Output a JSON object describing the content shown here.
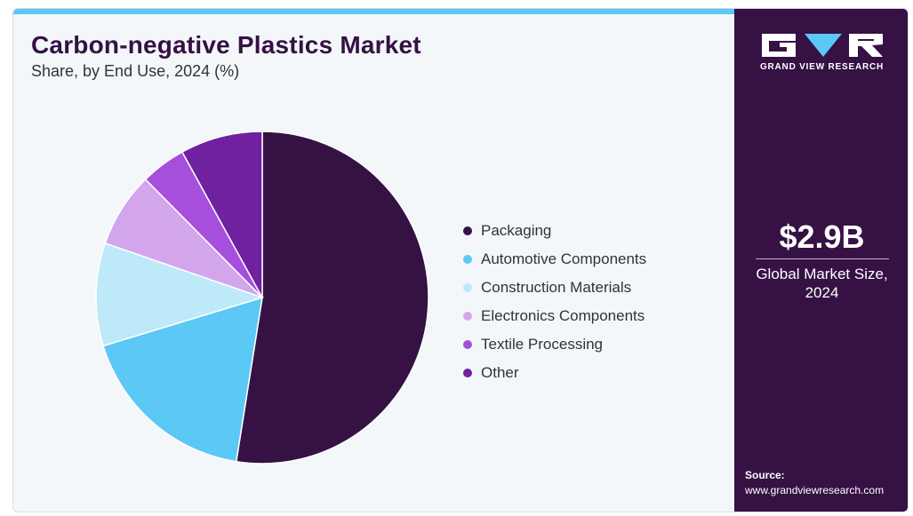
{
  "header": {
    "title": "Carbon-negative Plastics Market",
    "subtitle": "Share, by End Use, 2024 (%)"
  },
  "chart_data": {
    "type": "pie",
    "title": "Carbon-negative Plastics Market",
    "subtitle": "Share, by End Use, 2024 (%)",
    "categories": [
      "Packaging",
      "Automotive Components",
      "Construction Materials",
      "Electronics Components",
      "Textile Processing",
      "Other"
    ],
    "values": [
      52.5,
      17.8,
      10.0,
      7.3,
      4.4,
      8.0
    ],
    "colors": [
      "#351144",
      "#5bc8f5",
      "#bde9f8",
      "#d3a6ec",
      "#a64fdd",
      "#6f21a0"
    ],
    "legend_position": "right"
  },
  "sidebar": {
    "logo_text": "GRAND VIEW RESEARCH",
    "market_value": "$2.9B",
    "market_label_line1": "Global Market Size,",
    "market_label_line2": "2024",
    "source_title": "Source:",
    "source_url": "www.grandviewresearch.com"
  },
  "colors": {
    "brand_dark": "#351144",
    "accent": "#5bc8f5",
    "panel_bg": "#f3f7fa"
  }
}
